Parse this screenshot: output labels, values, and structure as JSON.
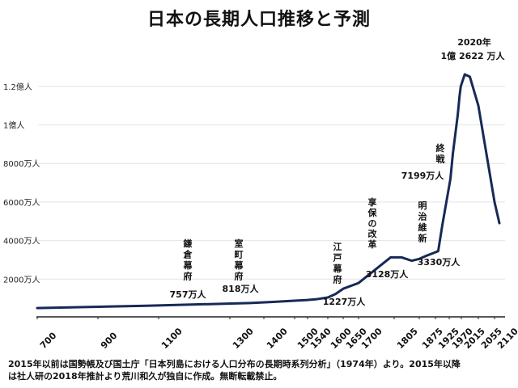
{
  "chart_data": {
    "type": "line",
    "title": "日本の長期人口推移と予測",
    "x_tick_labels": [
      "700",
      "900",
      "1100",
      "1300",
      "1400",
      "1500",
      "1540",
      "1600",
      "1650",
      "1700",
      "1805",
      "1875",
      "1925",
      "1970",
      "2015",
      "2055",
      "2110"
    ],
    "y_tick_labels": [
      "2000万人",
      "4000万人",
      "6000万人",
      "8000万人",
      "1億人",
      "1.2億人"
    ],
    "y_ticks_value": [
      2000,
      4000,
      6000,
      8000,
      10000,
      12000
    ],
    "ylim": [
      0,
      14000
    ],
    "series": [
      {
        "name": "人口（万人）",
        "tick_index": [
          0,
          1.8,
          3.6,
          4.3,
          5,
          6,
          6.4,
          7,
          7.5,
          8,
          9,
          9.9,
          10.3,
          10.7,
          11,
          11.4,
          11.8,
          12.2,
          12.5,
          13.1,
          13.3,
          13.5,
          13.7,
          13.85,
          13.95,
          14.2,
          14.5,
          15,
          15.5,
          16,
          16.3
        ],
        "values": [
          500,
          620,
          757,
          818,
          880,
          920,
          950,
          1050,
          1227,
          1500,
          1800,
          3128,
          3128,
          2950,
          3050,
          3200,
          3330,
          3450,
          4800,
          7199,
          8500,
          9500,
          10500,
          11500,
          12000,
          12622,
          12500,
          11000,
          8500,
          6000,
          4900
        ]
      }
    ],
    "annotations": [
      {
        "id": "kamakura",
        "label_lines": [
          "鎌",
          "倉",
          "幕",
          "府"
        ],
        "value": "757万人"
      },
      {
        "id": "muromachi",
        "label_lines": [
          "室",
          "町",
          "幕",
          "府"
        ],
        "value": "818万人"
      },
      {
        "id": "edo",
        "label_lines": [
          "江",
          "戸",
          "幕",
          "府"
        ],
        "value": "1227万人"
      },
      {
        "id": "kyoho",
        "label_lines": [
          "享",
          "保",
          "の",
          "改",
          "革"
        ],
        "value": "3128万人"
      },
      {
        "id": "meiji",
        "label_lines": [
          "明",
          "治",
          "維",
          "新"
        ],
        "value": "3330万人"
      },
      {
        "id": "shusen",
        "label_lines": [
          "終",
          "戦"
        ],
        "value": "7199万人"
      },
      {
        "id": "peak",
        "label_lines": [
          "2020年"
        ],
        "value": "1億 2622 万人"
      }
    ]
  },
  "footnote": {
    "line1": "2015年以前は国勢帳及び国土庁「日本列島における人口分布の長期時系列分析」（1974年）より。2015年以降",
    "line2": "は社人研の2018年推計より荒川和久が独自に作成。無断転載禁止。"
  }
}
